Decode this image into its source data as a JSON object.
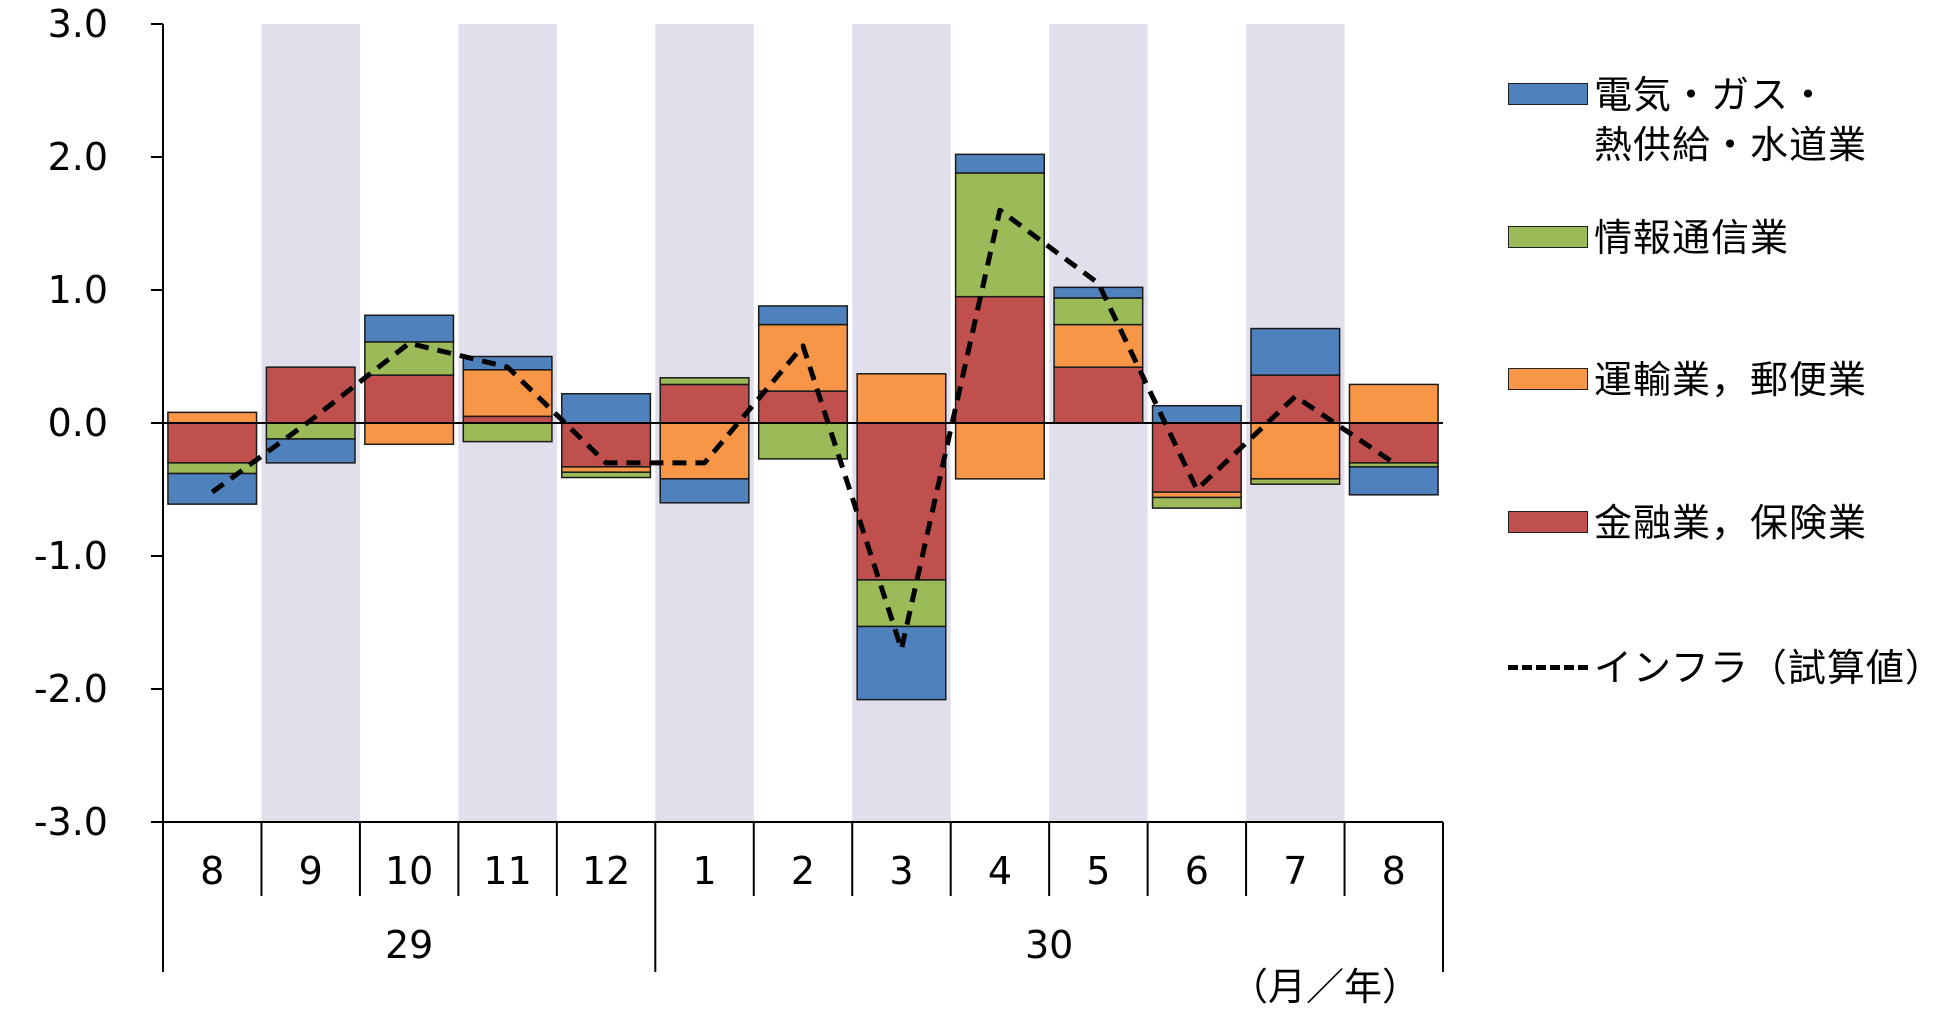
{
  "chart_data": {
    "type": "bar",
    "stacked": true,
    "categories": [
      "8",
      "9",
      "10",
      "11",
      "12",
      "1",
      "2",
      "3",
      "4",
      "5",
      "6",
      "7",
      "8"
    ],
    "year_groups": [
      {
        "label": "29",
        "span": [
          0,
          4
        ]
      },
      {
        "label": "30",
        "span": [
          5,
          12
        ]
      }
    ],
    "axis_unit_label": "（月／年）",
    "ylim": [
      -3.0,
      3.0
    ],
    "yticks": [
      "3.0",
      "2.0",
      "1.0",
      "0.0",
      "-1.0",
      "-2.0",
      "-3.0"
    ],
    "shaded_columns": [
      1,
      3,
      5,
      7,
      9,
      11
    ],
    "series": [
      {
        "name": "金融業，保険業",
        "color": "#c0504d",
        "values": [
          -0.3,
          0.42,
          0.36,
          0.05,
          -0.33,
          0.29,
          0.24,
          -1.18,
          0.95,
          0.42,
          -0.52,
          0.36,
          -0.3
        ]
      },
      {
        "name": "運輸業，郵便業",
        "color": "#f79646",
        "values": [
          0.08,
          0.0,
          -0.16,
          0.35,
          -0.04,
          -0.42,
          0.5,
          0.37,
          -0.42,
          0.32,
          -0.04,
          -0.42,
          0.29
        ]
      },
      {
        "name": "情報通信業",
        "color": "#9bbb59",
        "values": [
          -0.08,
          -0.12,
          0.25,
          -0.14,
          -0.04,
          0.05,
          -0.27,
          -0.35,
          0.93,
          0.2,
          -0.08,
          -0.04,
          -0.03
        ]
      },
      {
        "name": "電気・ガス・\n熱供給・水道業",
        "color": "#4f81bd",
        "values": [
          -0.23,
          -0.18,
          0.2,
          0.1,
          0.22,
          -0.18,
          0.14,
          -0.55,
          0.14,
          0.08,
          0.13,
          0.35,
          -0.21
        ]
      }
    ],
    "line": {
      "name": "インフラ（試算値）",
      "style": "dashed",
      "color": "#000000",
      "values": [
        -0.52,
        0.02,
        0.6,
        0.42,
        -0.3,
        -0.3,
        0.58,
        -1.7,
        1.6,
        1.05,
        -0.5,
        0.2,
        -0.3
      ]
    },
    "legend": {
      "position": "right"
    }
  }
}
